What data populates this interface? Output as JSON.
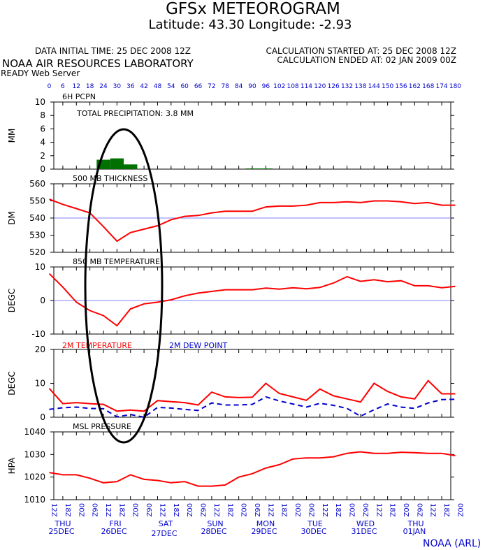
{
  "header": {
    "title": "GFSx METEOROGRAM",
    "location": "Latitude: 43.30 Longitude:  -2.93",
    "init_time": "DATA INITIAL TIME: 25 DEC 2008 12Z",
    "calc_started": "CALCULATION STARTED AT: 25 DEC 2008 12Z",
    "calc_ended": "CALCULATION ENDED AT: 02 JAN 2009 00Z",
    "lab": "NOAA AIR RESOURCES LABORATORY",
    "server": "READY Web Server",
    "credit": "NOAA (ARL)"
  },
  "colors": {
    "red": "#ff0000",
    "blue": "#0000cc",
    "green": "#007000",
    "refline": "#8080ff",
    "frame": "#000000"
  },
  "chart_data": [
    {
      "type": "bar",
      "title": "6H PCPN",
      "ylabel": "MM",
      "ylim": [
        0,
        10
      ],
      "yticks": [
        0,
        2,
        4,
        6,
        8,
        10
      ],
      "annotation": "TOTAL PRECIPITATION:  3.8 MM",
      "x_hours": [
        24,
        30,
        36,
        90
      ],
      "values": [
        1.4,
        1.6,
        0.7,
        0.1
      ]
    },
    {
      "type": "line",
      "title": "500 MB  THICKNESS",
      "ylabel": "DM",
      "ylim": [
        520,
        560
      ],
      "yticks": [
        520,
        530,
        540,
        550,
        560
      ],
      "reference_line": 540,
      "series": [
        {
          "color": "red",
          "x_hours": [
            0,
            6,
            12,
            18,
            24,
            30,
            36,
            42,
            48,
            54,
            60,
            66,
            72,
            78,
            84,
            90,
            96,
            102,
            108,
            114,
            120,
            126,
            132,
            138,
            144,
            150,
            156,
            162,
            168,
            174,
            180
          ],
          "values": [
            551,
            548,
            545.5,
            543,
            535,
            526.5,
            531.5,
            533.5,
            535.5,
            539,
            541,
            541.5,
            543,
            544,
            544,
            544,
            546.5,
            547,
            547,
            547.5,
            549,
            549,
            549.5,
            549,
            550,
            550,
            549.5,
            548.5,
            549,
            547.5,
            547.5
          ]
        }
      ]
    },
    {
      "type": "line",
      "title": "850 MB  TEMPERATURE",
      "ylabel": "DEGC",
      "ylim": [
        -10,
        10
      ],
      "yticks": [
        -10,
        0,
        10
      ],
      "reference_line": 0,
      "series": [
        {
          "color": "red",
          "x_hours": [
            0,
            6,
            12,
            18,
            24,
            30,
            36,
            42,
            48,
            54,
            60,
            66,
            72,
            78,
            84,
            90,
            96,
            102,
            108,
            114,
            120,
            126,
            132,
            138,
            144,
            150,
            156,
            162,
            168,
            174,
            180
          ],
          "values": [
            8,
            4,
            -0.5,
            -3,
            -4.5,
            -7.5,
            -2.5,
            -1,
            -0.5,
            0.2,
            1.4,
            2.2,
            2.7,
            3.2,
            3.2,
            3.2,
            3.7,
            3.4,
            3.8,
            3.5,
            3.9,
            5.2,
            7.1,
            5.7,
            6.2,
            5.6,
            5.9,
            4.4,
            4.4,
            3.8,
            4.2
          ]
        }
      ]
    },
    {
      "type": "line",
      "title": "2M TEMPERATURE",
      "ylabel": "DEGC",
      "ylim": [
        0,
        20
      ],
      "yticks": [
        0,
        10,
        20
      ],
      "series": [
        {
          "name": "2M TEMPERATURE",
          "color": "red",
          "x_hours": [
            0,
            6,
            12,
            18,
            24,
            30,
            36,
            42,
            48,
            54,
            60,
            66,
            72,
            78,
            84,
            90,
            96,
            102,
            108,
            114,
            120,
            126,
            132,
            138,
            144,
            150,
            156,
            162,
            168,
            174,
            180
          ],
          "values": [
            8.5,
            4,
            4.3,
            4,
            3.8,
            1.8,
            2.1,
            1.8,
            4.9,
            4.6,
            4.3,
            3.6,
            7.4,
            6,
            5.8,
            5.9,
            10,
            7,
            6,
            5,
            8.3,
            6.3,
            5.4,
            4.5,
            10,
            7.6,
            6,
            5.4,
            10.8,
            6.9,
            6.9
          ]
        },
        {
          "name": "2M   DEW POINT",
          "color": "blue",
          "dashed": true,
          "x_hours": [
            0,
            6,
            12,
            18,
            24,
            30,
            36,
            42,
            48,
            54,
            60,
            66,
            72,
            78,
            84,
            90,
            96,
            102,
            108,
            114,
            120,
            126,
            132,
            138,
            144,
            150,
            156,
            162,
            168,
            174,
            180
          ],
          "values": [
            2.3,
            2.8,
            3,
            2.6,
            2.5,
            0.1,
            0.8,
            0,
            2.9,
            2.7,
            2.3,
            2,
            4.2,
            3.6,
            3.6,
            3.8,
            6,
            4.8,
            3.9,
            3,
            4.1,
            3.5,
            2.6,
            0.3,
            2.2,
            3.9,
            3,
            2.6,
            4.2,
            5.2,
            5.3
          ]
        }
      ]
    },
    {
      "type": "line",
      "title": "MSL PRESSURE",
      "ylabel": "HPA",
      "ylim": [
        1010,
        1040
      ],
      "yticks": [
        1010,
        1020,
        1030,
        1040
      ],
      "series": [
        {
          "color": "red",
          "x_hours": [
            0,
            6,
            12,
            18,
            24,
            30,
            36,
            42,
            48,
            54,
            60,
            66,
            72,
            78,
            84,
            90,
            96,
            102,
            108,
            114,
            120,
            126,
            132,
            138,
            144,
            150,
            156,
            162,
            168,
            174,
            180
          ],
          "values": [
            1022,
            1021,
            1021,
            1019.5,
            1017.5,
            1018,
            1021,
            1019,
            1018.5,
            1017.5,
            1018,
            1016,
            1016,
            1016.5,
            1020,
            1021.5,
            1024,
            1025.5,
            1028,
            1028.5,
            1028.5,
            1029,
            1030.5,
            1031.2,
            1030.5,
            1030.5,
            1031,
            1030.8,
            1030.5,
            1030.5,
            1029.5
          ]
        }
      ]
    }
  ],
  "axis": {
    "forecast_hours": [
      0,
      6,
      12,
      18,
      24,
      30,
      36,
      42,
      48,
      54,
      60,
      66,
      72,
      78,
      84,
      90,
      96,
      102,
      108,
      114,
      120,
      126,
      132,
      138,
      144,
      150,
      156,
      162,
      168,
      174,
      180
    ],
    "time_labels": [
      "12Z",
      "18Z",
      "00Z",
      "06Z",
      "12Z",
      "18Z",
      "00Z",
      "06Z",
      "12Z",
      "18Z",
      "00Z",
      "06Z",
      "12Z",
      "18Z",
      "00Z",
      "06Z",
      "12Z",
      "18Z",
      "00Z",
      "06Z",
      "12Z",
      "18Z",
      "00Z",
      "06Z",
      "12Z",
      "18Z",
      "00Z",
      "06Z",
      "12Z",
      "18Z",
      "00Z"
    ],
    "days": [
      {
        "day": "THU",
        "date": "25DEC"
      },
      {
        "day": "FRI",
        "date": "26DEC"
      },
      {
        "day": "SAT",
        "date": "27DEC"
      },
      {
        "day": "SUN",
        "date": "28DEC"
      },
      {
        "day": "MON",
        "date": "29DEC"
      },
      {
        "day": "TUE",
        "date": "30DEC"
      },
      {
        "day": "WED",
        "date": "31DEC"
      },
      {
        "day": "THU",
        "date": "01JAN"
      }
    ]
  }
}
